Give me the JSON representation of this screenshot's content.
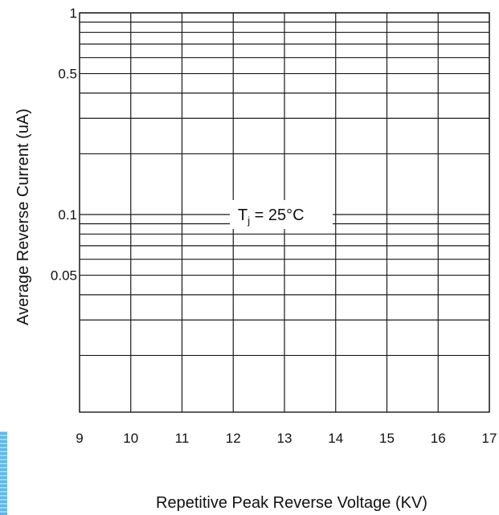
{
  "chart_data": {
    "type": "line",
    "title": "",
    "xlabel": "Repetitive Peak Reverse Voltage (KV)",
    "ylabel": "Average Reverse  Current  (uA)",
    "xlim": [
      9,
      17
    ],
    "ylim": [
      0.01,
      1
    ],
    "yscale": "log",
    "x_ticks": [
      "9",
      "10",
      "11",
      "12",
      "13",
      "14",
      "15",
      "16",
      "17"
    ],
    "x_tick_values": [
      9,
      10,
      11,
      12,
      13,
      14,
      15,
      16,
      17
    ],
    "y_tick_labels": [
      "1",
      "0.5",
      "0.1",
      "0.05"
    ],
    "y_tick_values": [
      1,
      0.5,
      0.1,
      0.05
    ],
    "y_gridlines": [
      1,
      0.9,
      0.8,
      0.7,
      0.6,
      0.5,
      0.4,
      0.3,
      0.2,
      0.1,
      0.09,
      0.08,
      0.07,
      0.06,
      0.05,
      0.04,
      0.03,
      0.02
    ],
    "grid": true,
    "series": [],
    "annotation": {
      "main": "T",
      "subscript": "j",
      "rest": " = 25°C",
      "x": 13,
      "y": 0.1
    }
  },
  "colors": {
    "grid": "#1a1a1a",
    "text": "#111111",
    "ribbon": "#5fb8e8"
  }
}
